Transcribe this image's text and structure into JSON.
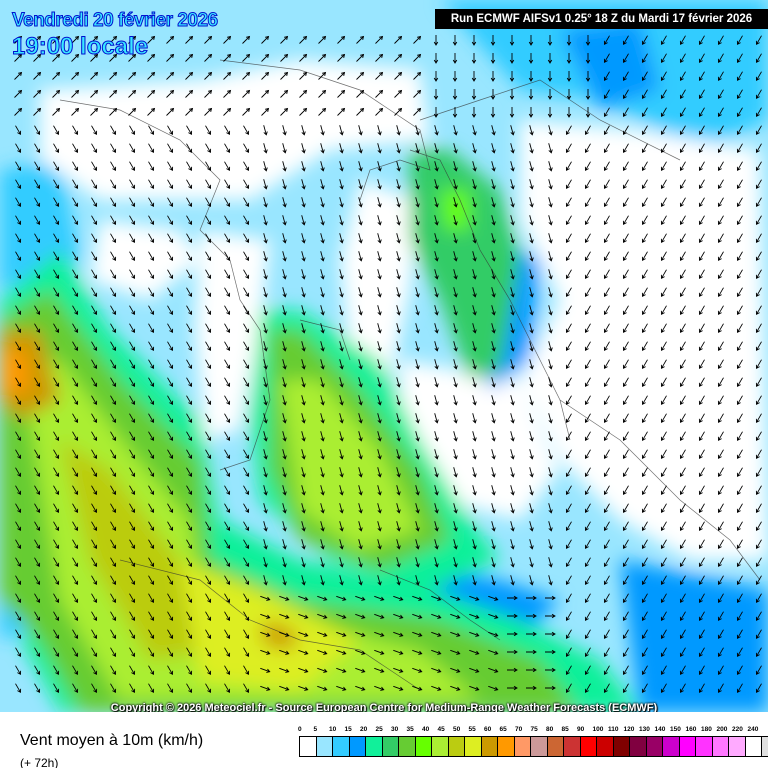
{
  "header": {
    "date": "Vendredi 20 février 2026",
    "time": "19:00 locale",
    "run": "Run ECMWF AIFSv1 0.25° 18 Z du Mardi 17 février 2026"
  },
  "copyright": "Copyright © 2026 Meteociel.fr - Source European Centre for Medium-Range Weather Forecasts (ECMWF)",
  "legend": {
    "title": "Vent moyen à 10m (km/h)",
    "subtitle": "(+ 72h)",
    "labels": [
      "0",
      "5",
      "10",
      "15",
      "20",
      "25",
      "30",
      "35",
      "40",
      "45",
      "50",
      "55",
      "60",
      "65",
      "70",
      "75",
      "80",
      "85",
      "90",
      "100",
      "110",
      "120",
      "130",
      "140",
      "150",
      "160",
      "180",
      "200",
      "220",
      "240"
    ],
    "colors": [
      "#ffffff",
      "#99e6ff",
      "#33ccff",
      "#0099ff",
      "#11f09a",
      "#33cc66",
      "#66cc33",
      "#66ff00",
      "#aaee33",
      "#bbcc11",
      "#ddee22",
      "#cc9900",
      "#ff9900",
      "#ff9966",
      "#cc9999",
      "#cc6633",
      "#cc3333",
      "#ff0000",
      "#cc0000",
      "#800000",
      "#800040",
      "#990066",
      "#cc00cc",
      "#ff00ff",
      "#ff33ff",
      "#ff77ff",
      "#ffaaff",
      "#ffffff",
      "#e0e0e0",
      "#c0c0c0"
    ]
  },
  "map": {
    "field": "wind-speed-10m",
    "arrows": "wind-direction"
  }
}
